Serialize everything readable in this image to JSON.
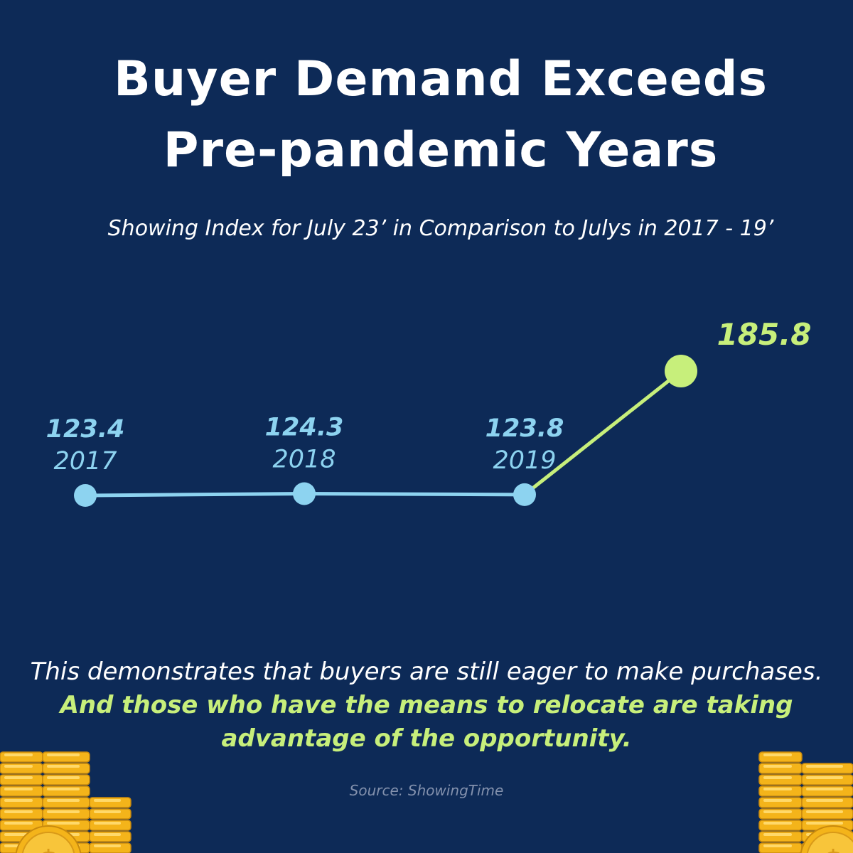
{
  "title_line1": "Buyer Demand Exceeds",
  "title_line2": "Pre-pandemic Years",
  "subtitle": "Showing Index for July 23’ in Comparison to Julys in 2017 - 19’",
  "body": {
    "text_plain": "This demonstrates that buyers are still eager to make purchases.",
    "text_highlight": "And those who have the means to relocate are taking advantage of the opportunity."
  },
  "source": "Source: ShowingTime",
  "colors": {
    "background": "#0d2a57",
    "historic": "#8dd3f0",
    "current": "#c7ef7b",
    "coin": "#f4b41a"
  },
  "icons": {
    "left_decoration": "coin-stack-icon",
    "right_decoration": "coin-stack-icon"
  },
  "chart_data": {
    "type": "line",
    "title": "Buyer Demand Exceeds Pre-pandemic Years",
    "subtitle": "Showing Index for July 23’ in Comparison to Julys in 2017 - 19’",
    "points": [
      {
        "year": "2017",
        "value": 123.4,
        "value_label": "123.4",
        "series": "historic"
      },
      {
        "year": "2018",
        "value": 124.3,
        "value_label": "124.3",
        "series": "historic"
      },
      {
        "year": "2019",
        "value": 123.8,
        "value_label": "123.8",
        "series": "historic"
      },
      {
        "year": "",
        "value": 185.8,
        "value_label": "185.8",
        "series": "current"
      }
    ],
    "grid": false,
    "legend": "none"
  }
}
